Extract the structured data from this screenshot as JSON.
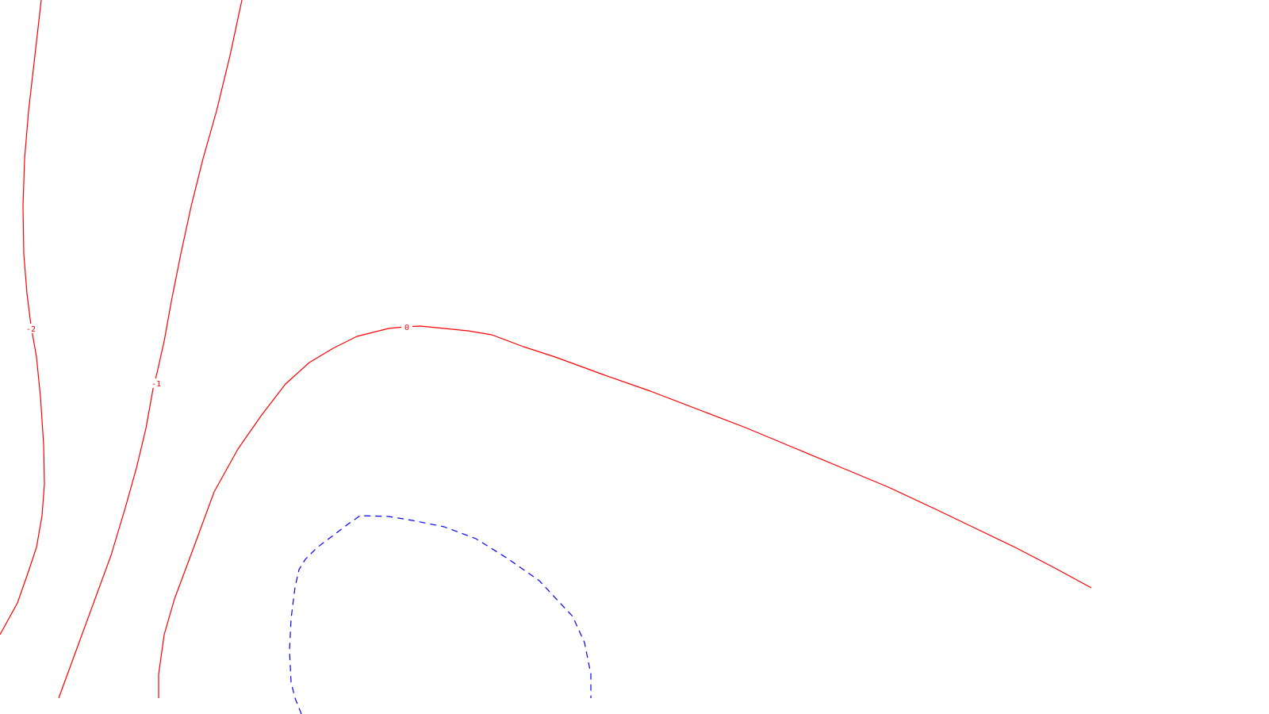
{
  "chart_data": {
    "type": "contour",
    "colors": {
      "positive_or_zero": "#ff0000",
      "negative_dashed": "#0000ff",
      "background": "#ffffff"
    },
    "contours": [
      {
        "level_label": "-2",
        "color": "#ff0000",
        "style": "solid",
        "label_on_line": true
      },
      {
        "level_label": "-1",
        "color": "#ff0000",
        "style": "solid",
        "label_on_line": true
      },
      {
        "level_label": "0",
        "color": "#ff0000",
        "style": "solid",
        "label_on_line": true
      },
      {
        "level_label": "",
        "color": "#0000ff",
        "style": "dashed",
        "label_on_line": false
      }
    ]
  }
}
